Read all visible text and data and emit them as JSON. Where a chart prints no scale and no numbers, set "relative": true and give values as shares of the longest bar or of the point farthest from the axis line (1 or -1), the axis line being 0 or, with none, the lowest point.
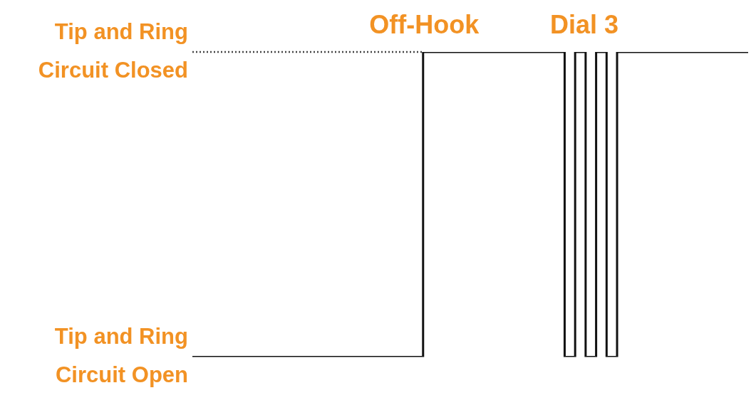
{
  "chart_data": {
    "type": "step",
    "relative": true,
    "grid": false,
    "legend": false,
    "marker": "none",
    "line_style": "solid",
    "categories": [
      null,
      null,
      null,
      null,
      null,
      null,
      null,
      null,
      null,
      null,
      null,
      null,
      null,
      null,
      null,
      null,
      null,
      null,
      null,
      null,
      null,
      null,
      null,
      null,
      null,
      null,
      null,
      null,
      null,
      null,
      null,
      null,
      null,
      null,
      null,
      null,
      null,
      null,
      null,
      null,
      null,
      null,
      null,
      null,
      null,
      null,
      null,
      null,
      null,
      null,
      null,
      null,
      null,
      null,
      null,
      null,
      null,
      null,
      null,
      null,
      null,
      null,
      null,
      null,
      null,
      null,
      null,
      null,
      null,
      null,
      null,
      null,
      null,
      null,
      null,
      null,
      null,
      null,
      null,
      null,
      null,
      null,
      null,
      null,
      null,
      null,
      null,
      null,
      null,
      null,
      null,
      null,
      null,
      null,
      null,
      null,
      null,
      null,
      null,
      null,
      null,
      null,
      null,
      null,
      null,
      null,
      null
    ],
    "series": [
      {
        "color": "#111111",
        "values": [
          0,
          0,
          0,
          0,
          0,
          0,
          0,
          0,
          0,
          0,
          0,
          0,
          0,
          0,
          0,
          0,
          0,
          0,
          0,
          0,
          0,
          0,
          0,
          0,
          0,
          0,
          0,
          0,
          0,
          0,
          0,
          0,
          0,
          0,
          0,
          0,
          0,
          0,
          0,
          0,
          0,
          0,
          0,
          0,
          1,
          1,
          1,
          1,
          1,
          1,
          1,
          1,
          1,
          1,
          1,
          1,
          1,
          1,
          1,
          1,
          1,
          1,
          1,
          1,
          1,
          1,
          1,
          1,
          1,
          1,
          1,
          0,
          0,
          1,
          1,
          0,
          0,
          1,
          1,
          0,
          0,
          1,
          1,
          1,
          1,
          1,
          1,
          1,
          1,
          1,
          1,
          1,
          1,
          1,
          1,
          1,
          1,
          1,
          1,
          1,
          1,
          1,
          1,
          1,
          1,
          1,
          1
        ]
      }
    ],
    "ref_lines": [
      {
        "axis": "y",
        "value": 1,
        "line_style": "dotted",
        "color": "#444444"
      }
    ],
    "annotations": [
      "Off-Hook",
      "Dial 3",
      "Tip and Ring Circuit Closed",
      "Tip and Ring Circuit Open"
    ]
  }
}
